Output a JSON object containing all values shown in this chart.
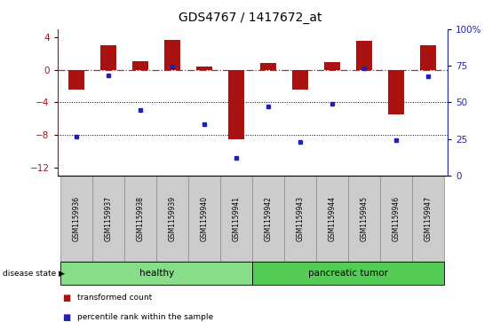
{
  "title": "GDS4767 / 1417672_at",
  "samples": [
    "GSM1159936",
    "GSM1159937",
    "GSM1159938",
    "GSM1159939",
    "GSM1159940",
    "GSM1159941",
    "GSM1159942",
    "GSM1159943",
    "GSM1159944",
    "GSM1159945",
    "GSM1159946",
    "GSM1159947"
  ],
  "bar_values": [
    -2.5,
    3.0,
    1.0,
    3.7,
    0.4,
    -8.5,
    0.8,
    -2.5,
    0.9,
    3.5,
    -5.5,
    3.0
  ],
  "dot_values": [
    -8.2,
    -0.7,
    -5.0,
    0.4,
    -6.7,
    -10.8,
    -4.5,
    -8.9,
    -4.2,
    0.2,
    -8.7,
    -0.8
  ],
  "bar_color": "#aa1111",
  "dot_color": "#2222aa",
  "ylim_left": [
    -13,
    5
  ],
  "ylim_right": [
    0,
    100
  ],
  "yticks_left": [
    4,
    0,
    -4,
    -8,
    -12
  ],
  "yticks_right": [
    100,
    75,
    50,
    25,
    0
  ],
  "hline_y": 0,
  "hline_color": "#cc2222",
  "hline_style": "-.",
  "dotted_lines": [
    -4,
    -8
  ],
  "healthy_label": "healthy",
  "tumor_label": "pancreatic tumor",
  "group_color_healthy": "#88dd88",
  "group_color_tumor": "#55cc55",
  "disease_state_label": "disease state",
  "legend_bar": "transformed count",
  "legend_dot": "percentile rank within the sample",
  "bar_width": 0.5,
  "bg_color": "#ffffff",
  "sample_box_color": "#cccccc"
}
